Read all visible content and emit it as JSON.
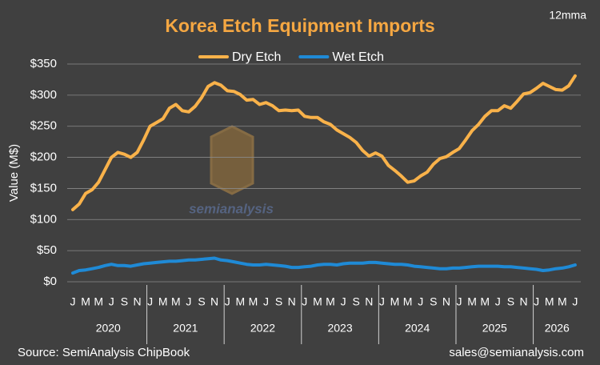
{
  "chart_data": {
    "type": "line",
    "title": "Korea Etch Equipment Imports",
    "subtitle": "12mma",
    "y_label": "Value (M$)",
    "watermark": "semianalysis",
    "source": "Source: SemiAnalysis ChipBook",
    "contact": "sales@semianalysis.com",
    "categories": [
      "J",
      null,
      "M",
      null,
      "M",
      null,
      "J",
      null,
      "S",
      null,
      "N",
      null,
      "J",
      null,
      "M",
      null,
      "M",
      null,
      "J",
      null,
      "S",
      null,
      "N",
      null,
      "J",
      null,
      "M",
      null,
      "M",
      null,
      "J",
      null,
      "S",
      null,
      "N",
      null,
      "J",
      null,
      "M",
      null,
      "M",
      null,
      "J",
      null,
      "S",
      null,
      "N",
      null,
      "J",
      null,
      "M",
      null,
      "M",
      null,
      "J",
      null,
      "S",
      null,
      "N",
      null,
      "J",
      null,
      "M",
      null,
      "M",
      null,
      "J",
      null,
      "S",
      null,
      "N",
      null,
      "J",
      null,
      "M",
      null,
      "M",
      null,
      "J"
    ],
    "years": [
      "2020",
      "2021",
      "2022",
      "2023",
      "2024",
      "2025",
      "2026"
    ],
    "series": [
      {
        "name": "Dry Etch",
        "color": "#f9b24a",
        "values": [
          116,
          125,
          142,
          148,
          160,
          180,
          200,
          208,
          205,
          200,
          208,
          228,
          250,
          256,
          262,
          279,
          285,
          275,
          273,
          282,
          296,
          314,
          320,
          316,
          307,
          306,
          301,
          292,
          293,
          285,
          288,
          283,
          275,
          276,
          275,
          276,
          266,
          264,
          264,
          257,
          253,
          244,
          238,
          232,
          224,
          211,
          202,
          207,
          202,
          187,
          179,
          170,
          160,
          162,
          170,
          176,
          189,
          198,
          201,
          208,
          214,
          228,
          243,
          253,
          266,
          275,
          275,
          283,
          279,
          290,
          302,
          304,
          311,
          319,
          314,
          309,
          308,
          315,
          331
        ]
      },
      {
        "name": "Wet Etch",
        "color": "#1f8ad6",
        "values": [
          14,
          18,
          19,
          21,
          23,
          26,
          28,
          26,
          26,
          25,
          27,
          29,
          30,
          31,
          32,
          33,
          33,
          34,
          35,
          35,
          36,
          37,
          38,
          35,
          34,
          32,
          30,
          28,
          27,
          27,
          28,
          27,
          26,
          25,
          23,
          23,
          24,
          25,
          27,
          28,
          28,
          27,
          29,
          30,
          30,
          30,
          31,
          31,
          30,
          29,
          28,
          28,
          27,
          25,
          24,
          23,
          22,
          21,
          21,
          22,
          22,
          23,
          24,
          25,
          25,
          25,
          25,
          24,
          24,
          23,
          22,
          21,
          20,
          18,
          19,
          21,
          22,
          24,
          27
        ]
      }
    ],
    "ylim": [
      0,
      350
    ],
    "yticks": [
      {
        "value": 0,
        "label": "$0"
      },
      {
        "value": 50,
        "label": "$50"
      },
      {
        "value": 100,
        "label": "$100"
      },
      {
        "value": 150,
        "label": "$150"
      },
      {
        "value": 200,
        "label": "$200"
      },
      {
        "value": 250,
        "label": "$250"
      },
      {
        "value": 300,
        "label": "$300"
      },
      {
        "value": 350,
        "label": "$350"
      }
    ],
    "grid": true,
    "legend": "top"
  }
}
